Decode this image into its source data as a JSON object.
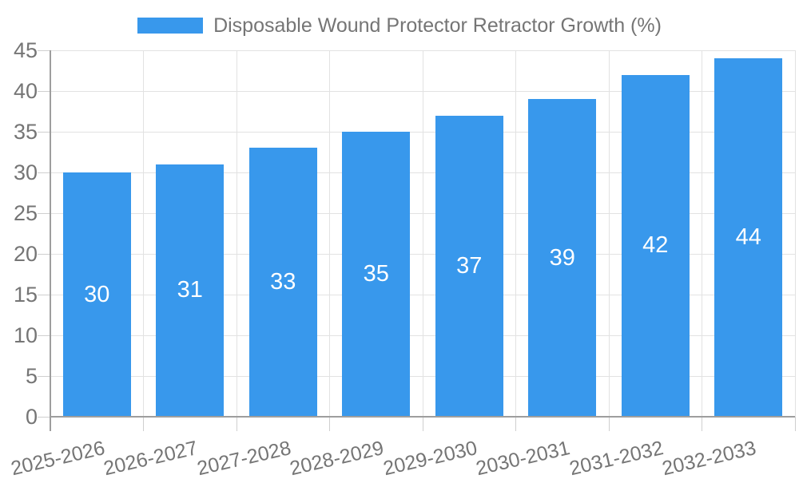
{
  "legend": {
    "label": "Disposable Wound Protector Retractor Growth (%)"
  },
  "chart_data": {
    "type": "bar",
    "title": "Disposable Wound Protector Retractor Growth (%)",
    "categories": [
      "2025-2026",
      "2026-2027",
      "2027-2028",
      "2028-2029",
      "2029-2030",
      "2030-2031",
      "2031-2032",
      "2032-2033"
    ],
    "values": [
      30,
      31,
      33,
      35,
      37,
      39,
      42,
      44
    ],
    "xlabel": "",
    "ylabel": "",
    "ylim": [
      0,
      45
    ],
    "ytick_step": 5,
    "yticks": [
      0,
      5,
      10,
      15,
      20,
      25,
      30,
      35,
      40,
      45
    ],
    "grid": true,
    "legend_position": "top",
    "bar_value_labels_inside": true,
    "colors": {
      "bar": "#3898EC",
      "bar_label": "#FFFFFF",
      "axis_text": "#757575",
      "grid_line": "#E2E2E2",
      "tick_line": "#CFCFCF",
      "axis_line": "#9E9E9E",
      "background": "#FFFFFF"
    }
  }
}
